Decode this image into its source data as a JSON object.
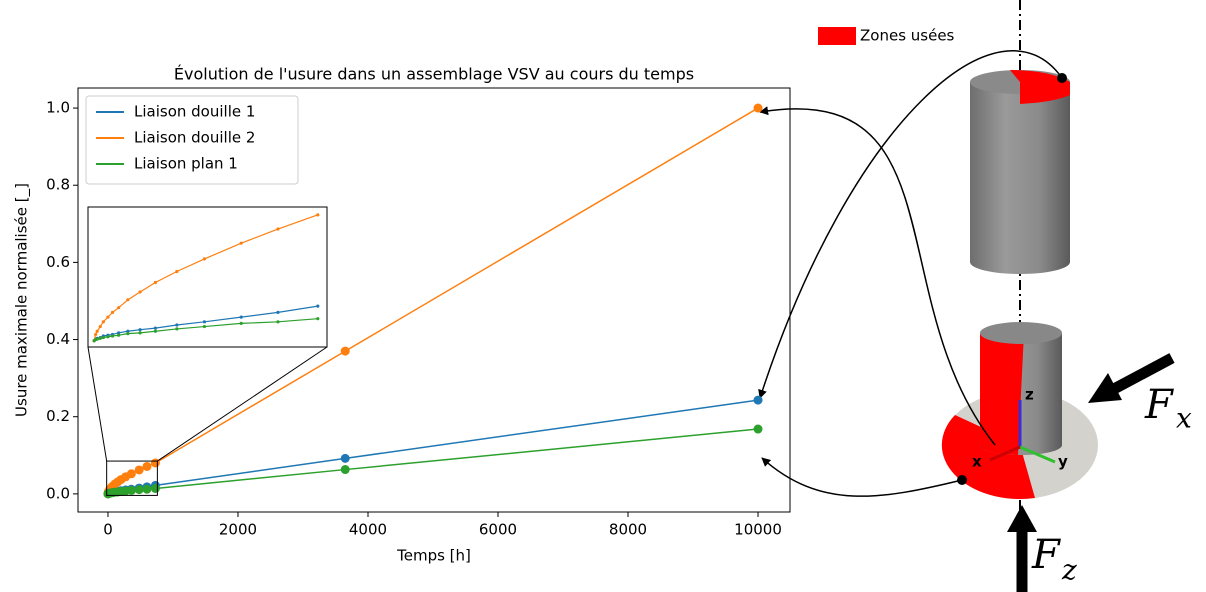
{
  "chart_data": {
    "type": "line",
    "title": "Évolution de l'usure dans un assemblage VSV au cours du temps",
    "x_label": "Temps [h]",
    "y_label": "Usure maximale normalisée [_]",
    "x": [
      0,
      5,
      10,
      20,
      30,
      45,
      60,
      80,
      110,
      150,
      200,
      270,
      360,
      480,
      600,
      730,
      3650,
      10000
    ],
    "series": [
      {
        "name": "Liaison douille 1",
        "color": "#1f77b4",
        "values": [
          0,
          0.001,
          0.0015,
          0.002,
          0.003,
          0.0035,
          0.004,
          0.005,
          0.006,
          0.007,
          0.008,
          0.01,
          0.012,
          0.015,
          0.018,
          0.022,
          0.092,
          0.243
        ]
      },
      {
        "name": "Liaison douille 2",
        "color": "#ff7f0e",
        "values": [
          0,
          0.004,
          0.006,
          0.009,
          0.012,
          0.015,
          0.018,
          0.021,
          0.026,
          0.031,
          0.037,
          0.044,
          0.052,
          0.062,
          0.071,
          0.08,
          0.37,
          1.0
        ]
      },
      {
        "name": "Liaison plan 1",
        "color": "#2ca02c",
        "values": [
          0,
          0.0008,
          0.001,
          0.0015,
          0.002,
          0.0025,
          0.003,
          0.0035,
          0.0045,
          0.005,
          0.006,
          0.0075,
          0.009,
          0.011,
          0.012,
          0.014,
          0.063,
          0.168
        ]
      }
    ],
    "xlim": [
      -461,
      10492
    ],
    "ylim": [
      -0.047,
      1.052
    ],
    "xticks": [
      0,
      2000,
      4000,
      6000,
      8000,
      10000
    ],
    "yticks": [
      {
        "value": 0,
        "label": "0.0"
      },
      {
        "value": 0.2,
        "label": "0.2"
      },
      {
        "value": 0.4,
        "label": "0.4"
      },
      {
        "value": 0.6,
        "label": "0.6"
      },
      {
        "value": 0.8,
        "label": "0.8"
      },
      {
        "value": 1.0,
        "label": "1.0"
      }
    ],
    "legend": "upper left",
    "grid": false,
    "inset": {
      "xlim": [
        -20,
        760
      ],
      "ylim": [
        -0.004,
        0.085
      ]
    }
  },
  "diagram": {
    "legend": "Zones usées",
    "legend_color": "#ff0000",
    "axes": [
      "x",
      "y",
      "z"
    ],
    "forces": [
      {
        "symbol": "F",
        "subscript": "x"
      },
      {
        "symbol": "F",
        "subscript": "z"
      }
    ]
  }
}
